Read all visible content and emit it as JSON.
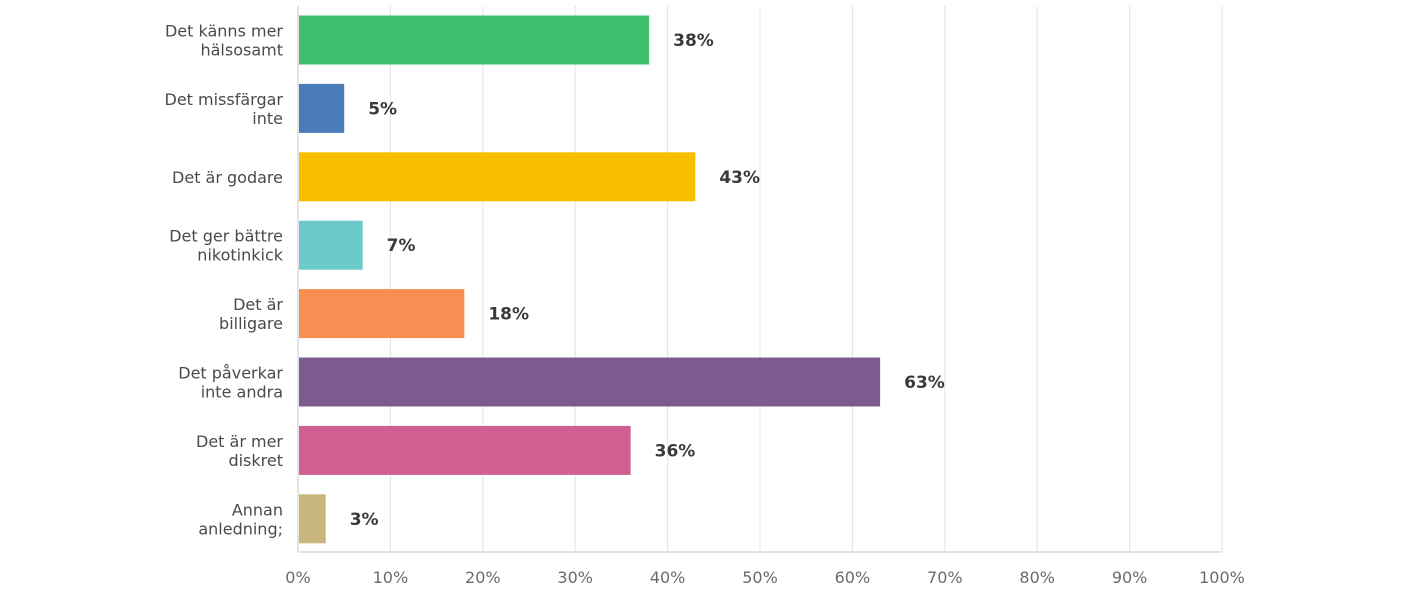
{
  "chart_data": {
    "type": "bar",
    "orientation": "horizontal",
    "categories": [
      [
        "Det känns mer",
        "hälsosamt"
      ],
      [
        "Det missfärgar",
        "inte"
      ],
      [
        "Det är godare"
      ],
      [
        "Det ger bättre",
        "nikotinkick"
      ],
      [
        "Det är",
        "billigare"
      ],
      [
        "Det påverkar",
        "inte andra"
      ],
      [
        "Det är mer",
        "diskret"
      ],
      [
        "Annan",
        "anledning;"
      ]
    ],
    "values": [
      38,
      5,
      43,
      7,
      18,
      63,
      36,
      3
    ],
    "value_labels": [
      "38%",
      "5%",
      "43%",
      "7%",
      "18%",
      "63%",
      "36%",
      "3%"
    ],
    "colors": [
      "#3fbf6e",
      "#4a7bbb",
      "#f8bf00",
      "#6ccacb",
      "#f78e52",
      "#7c5c8f",
      "#d25f91",
      "#c9b67c"
    ],
    "xlim": [
      0,
      100
    ],
    "x_ticks": [
      "0%",
      "10%",
      "20%",
      "30%",
      "40%",
      "50%",
      "60%",
      "70%",
      "80%",
      "90%",
      "100%"
    ],
    "grid": true,
    "title": "",
    "xlabel": "",
    "ylabel": ""
  }
}
